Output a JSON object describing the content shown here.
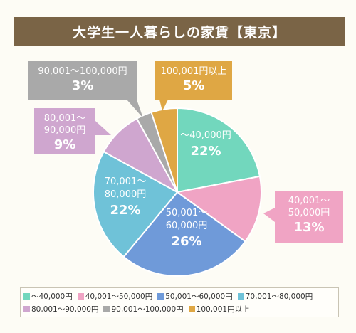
{
  "chart_data": {
    "type": "pie",
    "title": "大学生一人暮らしの家賃【東京】",
    "slices": [
      {
        "label": "～40,000円",
        "value": 22,
        "display": "22%",
        "color": "#72d7bd"
      },
      {
        "label": "40,001～50,000円",
        "value": 13,
        "display": "13%",
        "color": "#f0a4c4"
      },
      {
        "label": "50,001～60,000円",
        "value": 26,
        "display": "26%",
        "color": "#6f9ad9"
      },
      {
        "label": "70,001～80,000円",
        "value": 22,
        "display": "22%",
        "color": "#6fc2d8"
      },
      {
        "label": "80,001～90,000円",
        "value": 9,
        "display": "9%",
        "color": "#cfa6cf"
      },
      {
        "label": "90,001～100,000円",
        "value": 3,
        "display": "3%",
        "color": "#a9a9a9"
      },
      {
        "label": "100,001円以上",
        "value": 5,
        "display": "5%",
        "color": "#dfa744"
      }
    ],
    "callout_labels": [
      {
        "line1": "～40,000円",
        "line2": "",
        "pct": "22%"
      },
      {
        "line1": "40,001～",
        "line2": "50,000円",
        "pct": "13%"
      },
      {
        "line1": "50,001～",
        "line2": "60,000円",
        "pct": "26%"
      },
      {
        "line1": "70,001～",
        "line2": "80,000円",
        "pct": "22%"
      },
      {
        "line1": "80,001～",
        "line2": "90,000円",
        "pct": "9%"
      },
      {
        "line1": "90,001～100,000円",
        "line2": "",
        "pct": "3%"
      },
      {
        "line1": "100,001円以上",
        "line2": "",
        "pct": "5%"
      }
    ],
    "legend_placement": "bottom"
  }
}
